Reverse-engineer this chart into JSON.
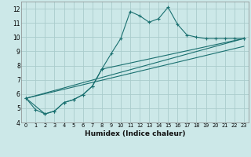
{
  "xlabel": "Humidex (Indice chaleur)",
  "background_color": "#cce8e8",
  "grid_color": "#aacccc",
  "line_color": "#1a7070",
  "xlim": [
    -0.5,
    23.5
  ],
  "ylim": [
    4,
    12.5
  ],
  "xticks": [
    0,
    1,
    2,
    3,
    4,
    5,
    6,
    7,
    8,
    9,
    10,
    11,
    12,
    13,
    14,
    15,
    16,
    17,
    18,
    19,
    20,
    21,
    22,
    23
  ],
  "yticks": [
    4,
    5,
    6,
    7,
    8,
    9,
    10,
    11,
    12
  ],
  "line1": {
    "x": [
      0,
      1,
      2,
      3,
      4,
      5,
      6,
      7,
      8,
      9,
      10,
      11,
      12,
      13,
      14,
      15,
      16,
      17,
      18,
      19,
      20,
      21,
      22,
      23
    ],
    "y": [
      5.7,
      4.9,
      4.6,
      4.8,
      5.4,
      5.6,
      5.95,
      6.55,
      7.75,
      8.85,
      9.9,
      11.8,
      11.5,
      11.05,
      11.3,
      12.1,
      10.9,
      10.15,
      10.0,
      9.9,
      9.9,
      9.9,
      9.9,
      9.9
    ]
  },
  "line2": {
    "x": [
      0,
      2,
      3,
      4,
      5,
      6,
      7,
      8,
      23
    ],
    "y": [
      5.7,
      4.6,
      4.8,
      5.4,
      5.6,
      5.95,
      6.55,
      7.75,
      9.9
    ]
  },
  "line3": {
    "x": [
      0,
      23
    ],
    "y": [
      5.7,
      9.9
    ]
  },
  "line4": {
    "x": [
      0,
      23
    ],
    "y": [
      5.7,
      9.35
    ]
  }
}
